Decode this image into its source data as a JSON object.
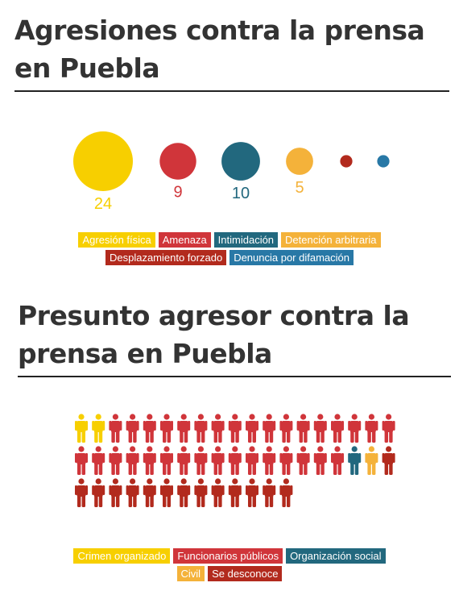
{
  "titles": {
    "aggressions": "Agresiones contra la prensa en Puebla",
    "aggressor": "Presunto agresor contra la prensa en Puebla"
  },
  "colors": {
    "yellow": "#F7CF00",
    "red": "#D0353A",
    "teal": "#22687E",
    "orange": "#F4B23A",
    "darkred": "#B22A1D",
    "blue": "#2878A6"
  },
  "chart_data": [
    {
      "type": "bubble",
      "categories": [
        "Agresión física",
        "Amenaza",
        "Intimidación",
        "Detención arbitraria",
        "Desplazamiento forzado",
        "Denuncia por difamación"
      ],
      "values": [
        24,
        9,
        10,
        5,
        1,
        1
      ],
      "value_labels": [
        "24",
        "9",
        "10",
        "5",
        "",
        ""
      ],
      "colors": [
        "#F7CF00",
        "#D0353A",
        "#22687E",
        "#F4B23A",
        "#B22A1D",
        "#2878A6"
      ],
      "legend": {
        "rows": [
          [
            {
              "label": "Agresión física",
              "color": "#F7CF00"
            },
            {
              "label": "Amenaza",
              "color": "#D0353A"
            },
            {
              "label": "Intimidación",
              "color": "#22687E"
            },
            {
              "label": "Detención arbitraria",
              "color": "#F4B23A"
            }
          ],
          [
            {
              "label": "Desplazamiento forzado",
              "color": "#B22A1D"
            },
            {
              "label": "Denuncia por difamación",
              "color": "#2878A6"
            }
          ]
        ]
      }
    },
    {
      "type": "pictogram",
      "categories": [
        "Crimen organizado",
        "Funcionarios públicos",
        "Organización social",
        "Civil",
        "Se desconoce"
      ],
      "rows": [
        [
          "Crimen organizado",
          "Crimen organizado",
          "Funcionarios públicos",
          "Funcionarios públicos",
          "Funcionarios públicos",
          "Funcionarios públicos",
          "Funcionarios públicos",
          "Funcionarios públicos",
          "Funcionarios públicos",
          "Funcionarios públicos",
          "Funcionarios públicos",
          "Funcionarios públicos",
          "Funcionarios públicos",
          "Funcionarios públicos",
          "Funcionarios públicos",
          "Funcionarios públicos",
          "Funcionarios públicos",
          "Funcionarios públicos",
          "Funcionarios públicos"
        ],
        [
          "Funcionarios públicos",
          "Funcionarios públicos",
          "Funcionarios públicos",
          "Funcionarios públicos",
          "Funcionarios públicos",
          "Funcionarios públicos",
          "Funcionarios públicos",
          "Funcionarios públicos",
          "Funcionarios públicos",
          "Funcionarios públicos",
          "Funcionarios públicos",
          "Funcionarios públicos",
          "Funcionarios públicos",
          "Funcionarios públicos",
          "Funcionarios públicos",
          "Funcionarios públicos",
          "Organización social",
          "Civil",
          "Se desconoce"
        ],
        [
          "Se desconoce",
          "Se desconoce",
          "Se desconoce",
          "Se desconoce",
          "Se desconoce",
          "Se desconoce",
          "Se desconoce",
          "Se desconoce",
          "Se desconoce",
          "Se desconoce",
          "Se desconoce",
          "Se desconoce",
          "Se desconoce"
        ]
      ],
      "legend": {
        "rows": [
          [
            {
              "label": "Crimen organizado",
              "color": "#F7CF00"
            },
            {
              "label": "Funcionarios públicos",
              "color": "#D0353A"
            },
            {
              "label": "Organización social",
              "color": "#22687E"
            }
          ],
          [
            {
              "label": "Civil",
              "color": "#F4B23A"
            },
            {
              "label": "Se desconoce",
              "color": "#B22A1D"
            }
          ]
        ]
      }
    }
  ]
}
